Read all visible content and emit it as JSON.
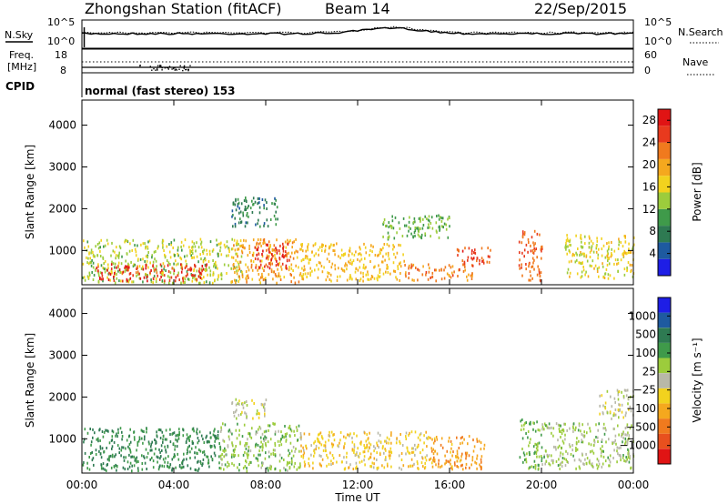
{
  "header": {
    "station": "Zhongshan Station (fitACF)",
    "beam": "Beam 14",
    "date": "22/Sep/2015"
  },
  "noise_panel": {
    "left_label": "N.Sky",
    "right_label": "N.Search",
    "left_ticks": [
      "10^5",
      "10^0"
    ],
    "right_ticks": [
      "10^5",
      "10^0"
    ]
  },
  "freq_panel": {
    "left_label_line1": "Freq.",
    "left_label_line2": "[MHz]",
    "right_label": "Nave",
    "left_ticks": [
      "18",
      "8"
    ],
    "right_ticks": [
      "60",
      "0"
    ]
  },
  "cpid": {
    "label": "CPID",
    "mode": "normal (fast stereo) 153"
  },
  "x_axis": {
    "title": "Time UT",
    "ticks": [
      "00:00",
      "04:00",
      "08:00",
      "12:00",
      "16:00",
      "20:00",
      "00:00"
    ],
    "range_hours": [
      0,
      24
    ]
  },
  "colors": {
    "power": [
      "#1e1ee6",
      "#1e5aa0",
      "#2e7a52",
      "#3f9a4a",
      "#9ccc3c",
      "#f2d21e",
      "#f5a81e",
      "#f07a1e",
      "#e83a1e",
      "#e01414"
    ],
    "velocity": [
      "#e01414",
      "#e8501e",
      "#f07a1e",
      "#f5a81e",
      "#f2d21e",
      "#b8b8a8",
      "#9ccc3c",
      "#3f9a4a",
      "#2e7a52",
      "#1e5aa0",
      "#1e1ee6"
    ]
  },
  "chart_data": [
    {
      "type": "heatmap",
      "name": "power",
      "ylabel": "Slant Range [km]",
      "yticks": [
        "1000",
        "2000",
        "3000",
        "4000"
      ],
      "ylim": [
        180,
        4600
      ],
      "colorbar_label": "Power [dB]",
      "colorbar_ticks": [
        "4",
        "8",
        "12",
        "16",
        "20",
        "24",
        "28"
      ],
      "colorbar_range": [
        0,
        30
      ],
      "blocks": [
        {
          "t": [
            0.0,
            7.0
          ],
          "r": [
            250,
            1300
          ],
          "v": 14
        },
        {
          "t": [
            0.5,
            5.5
          ],
          "r": [
            300,
            700
          ],
          "v": 26
        },
        {
          "t": [
            6.5,
            9.5
          ],
          "r": [
            250,
            1300
          ],
          "v": 20
        },
        {
          "t": [
            7.5,
            9.0
          ],
          "r": [
            600,
            1200
          ],
          "v": 27
        },
        {
          "t": [
            9.5,
            14.0
          ],
          "r": [
            300,
            1200
          ],
          "v": 18
        },
        {
          "t": [
            14.0,
            17.0
          ],
          "r": [
            300,
            700
          ],
          "v": 22
        },
        {
          "t": [
            16.2,
            17.8
          ],
          "r": [
            700,
            1100
          ],
          "v": 25
        },
        {
          "t": [
            19.0,
            20.0
          ],
          "r": [
            300,
            1500
          ],
          "v": 24
        },
        {
          "t": [
            21.0,
            24.0
          ],
          "r": [
            350,
            1400
          ],
          "v": 16
        },
        {
          "t": [
            6.5,
            8.5
          ],
          "r": [
            1600,
            2300
          ],
          "v": 8
        },
        {
          "t": [
            13.0,
            16.0
          ],
          "r": [
            1300,
            1900
          ],
          "v": 12
        }
      ]
    },
    {
      "type": "heatmap",
      "name": "velocity",
      "ylabel": "Slant Range [km]",
      "yticks": [
        "1000",
        "2000",
        "3000",
        "4000"
      ],
      "ylim": [
        180,
        4600
      ],
      "colorbar_label": "Velocity [m s⁻¹]",
      "colorbar_ticks": [
        "1000",
        "500",
        "100",
        "25",
        "−25",
        "−100",
        "−500",
        "−1000"
      ],
      "colorbar_range": [
        -1500,
        1500
      ],
      "blocks": [
        {
          "t": [
            0.0,
            6.0
          ],
          "r": [
            250,
            1300
          ],
          "v": 700
        },
        {
          "t": [
            6.0,
            9.5
          ],
          "r": [
            250,
            1400
          ],
          "v": 300
        },
        {
          "t": [
            9.5,
            15.0
          ],
          "r": [
            300,
            1200
          ],
          "v": -300
        },
        {
          "t": [
            15.0,
            17.5
          ],
          "r": [
            300,
            1100
          ],
          "v": -600
        },
        {
          "t": [
            19.0,
            20.0
          ],
          "r": [
            300,
            1500
          ],
          "v": 400
        },
        {
          "t": [
            20.0,
            24.0
          ],
          "r": [
            300,
            1400
          ],
          "v": 200
        },
        {
          "t": [
            6.5,
            8.0
          ],
          "r": [
            1500,
            2000
          ],
          "v": 0
        },
        {
          "t": [
            22.5,
            24.0
          ],
          "r": [
            1500,
            2200
          ],
          "v": 0
        }
      ]
    }
  ]
}
